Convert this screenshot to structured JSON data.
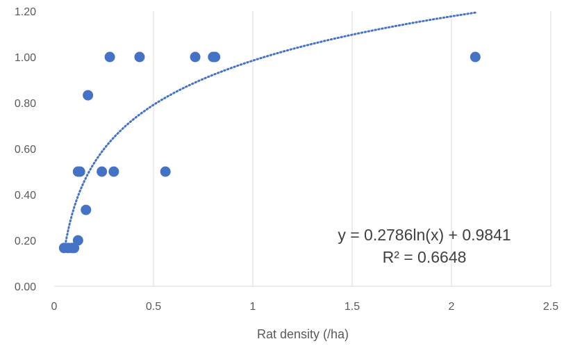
{
  "chart_data": {
    "type": "scatter",
    "title": "",
    "xlabel": "Rat density (/ha)",
    "ylabel": "",
    "xlim": [
      0,
      2.5
    ],
    "ylim": [
      0,
      1.2
    ],
    "x_ticks": [
      "0",
      "0.5",
      "1",
      "1.5",
      "2",
      "2.5"
    ],
    "y_ticks": [
      "0.00",
      "0.20",
      "0.40",
      "0.60",
      "0.80",
      "1.00",
      "1.20"
    ],
    "grid": "vertical",
    "series": [
      {
        "color": "#4472c4",
        "points": [
          {
            "x": 0.05,
            "y": 0.167
          },
          {
            "x": 0.07,
            "y": 0.167
          },
          {
            "x": 0.09,
            "y": 0.167
          },
          {
            "x": 0.1,
            "y": 0.167
          },
          {
            "x": 0.12,
            "y": 0.2
          },
          {
            "x": 0.12,
            "y": 0.5
          },
          {
            "x": 0.13,
            "y": 0.5
          },
          {
            "x": 0.16,
            "y": 0.333
          },
          {
            "x": 0.17,
            "y": 0.833
          },
          {
            "x": 0.24,
            "y": 0.5
          },
          {
            "x": 0.28,
            "y": 1.0
          },
          {
            "x": 0.3,
            "y": 0.5
          },
          {
            "x": 0.43,
            "y": 1.0
          },
          {
            "x": 0.56,
            "y": 0.5
          },
          {
            "x": 0.71,
            "y": 1.0
          },
          {
            "x": 0.8,
            "y": 1.0
          },
          {
            "x": 0.81,
            "y": 1.0
          },
          {
            "x": 2.12,
            "y": 1.0
          }
        ]
      }
    ],
    "trendline": {
      "type": "logarithmic",
      "a": 0.2786,
      "b": 0.9841,
      "x_range": [
        0.05,
        2.12
      ],
      "color": "#4472c4",
      "style": "dotted",
      "equation": "y = 0.2786ln(x) + 0.9841",
      "r_squared": "R² = 0.6648"
    }
  }
}
